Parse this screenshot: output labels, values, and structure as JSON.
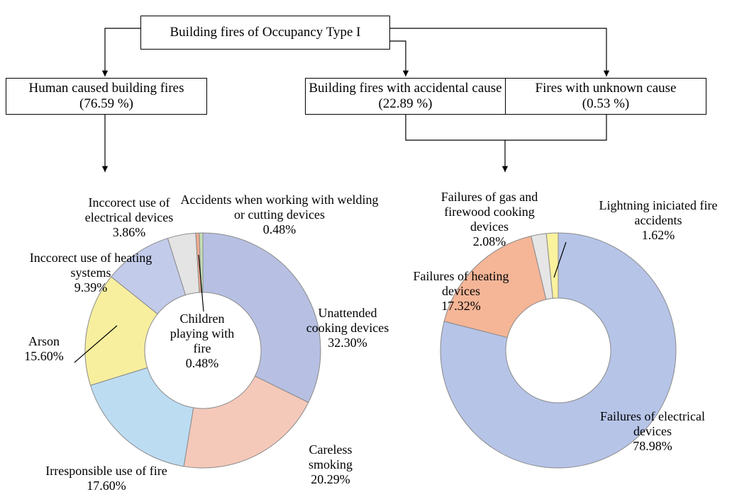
{
  "diagram": {
    "nodes": [
      {
        "label": "Building fires of Occupancy Type I"
      },
      {
        "label": "Human caused building fires (76.59 %)"
      },
      {
        "label": "Building fires with accidental cause (22.89 %)"
      },
      {
        "label": "Fires with unknown cause (0.53 %)"
      }
    ]
  },
  "chart_data": [
    {
      "type": "pie",
      "categories": [
        "Unattended cooking devices",
        "Careless smoking",
        "Irresponsible use of fire",
        "Arson",
        "Inccorect use of heating systems",
        "Inccorect use of electrical devices",
        "Children playing with fire",
        "Accidents when working with welding or cutting devices"
      ],
      "values": [
        32.3,
        20.29,
        17.6,
        15.6,
        9.39,
        3.86,
        0.48,
        0.48
      ],
      "value_labels": [
        "32.30%",
        "20.29%",
        "17.60%",
        "15.60%",
        "9.39%",
        "3.86%",
        "0.48%",
        "0.48%"
      ],
      "colors": [
        "#b7c0e2",
        "#f5c9ba",
        "#bcdcf2",
        "#f7ef9e",
        "#c3cbea",
        "#e4e4e4",
        "#f2a98f",
        "#c6e0b4"
      ]
    },
    {
      "type": "pie",
      "categories": [
        "Failures of electrical devices",
        "Failures of heating devices",
        "Failures of gas and firewood cooking devices",
        "Lightning iniciated fire accidents"
      ],
      "values": [
        78.98,
        17.32,
        2.08,
        1.62
      ],
      "value_labels": [
        "78.98%",
        "17.32%",
        "2.08%",
        "1.62%"
      ],
      "colors": [
        "#b6c4e8",
        "#f5b597",
        "#e6e6e6",
        "#fbf29e"
      ]
    }
  ]
}
